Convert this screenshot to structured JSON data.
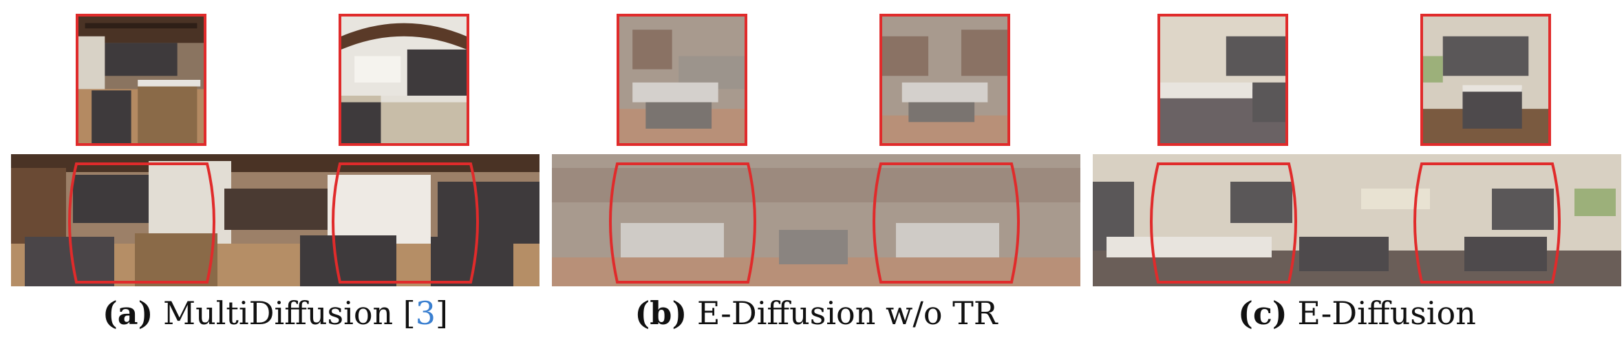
{
  "colors": {
    "highlight": "#e02b2b",
    "cite": "#3a7fd0"
  },
  "panels": [
    {
      "label": "(a)",
      "title": "MultiDiffusion [",
      "cite": "3",
      "close": "]",
      "style": "multidiffusion"
    },
    {
      "label": "(b)",
      "title": "E-Diffusion w/o TR",
      "cite": "",
      "close": "",
      "style": "blurry"
    },
    {
      "label": "(c)",
      "title": "E-Diffusion",
      "cite": "",
      "close": "",
      "style": "clean"
    }
  ]
}
